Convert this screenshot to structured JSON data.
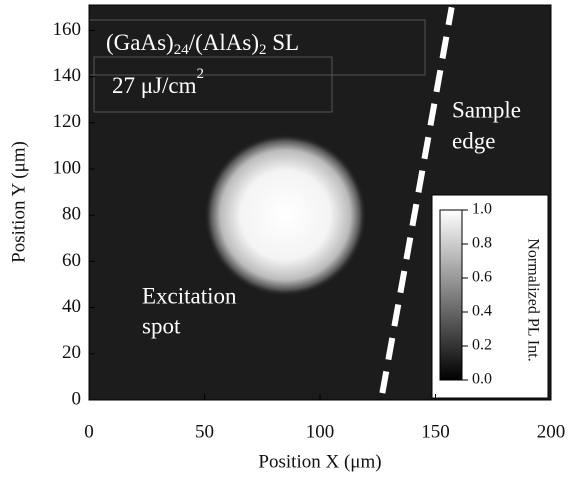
{
  "chart_data": {
    "type": "image",
    "title_parts": [
      "(GaAs)",
      "24",
      "/(AlAs)",
      "2",
      " SL"
    ],
    "fluence_parts": [
      "27 μJ/cm",
      "2"
    ],
    "annotations": [
      [
        "Sample",
        "edge"
      ],
      [
        "Excitation",
        "spot"
      ]
    ],
    "xlabel": "Position X (μm)",
    "ylabel": "Position Y (μm)",
    "xlim": [
      0,
      200
    ],
    "xticks": [
      0,
      50,
      100,
      150,
      200
    ],
    "ylim": [
      0,
      171
    ],
    "yticks": [
      0,
      20,
      40,
      60,
      80,
      100,
      120,
      140,
      160
    ],
    "spot": {
      "x": 85,
      "y": 80,
      "radius": 26
    },
    "edge": {
      "x": [
        127,
        157
      ],
      "y": [
        3,
        170
      ]
    },
    "colorbar": {
      "label": "Normalized PL Int.",
      "lim": [
        0,
        1
      ],
      "ticks": [
        {
          "value": 0,
          "label": "0.0"
        },
        {
          "value": 0.2,
          "label": "0.2"
        },
        {
          "value": 0.4,
          "label": "0.4"
        },
        {
          "value": 0.6,
          "label": "0.6"
        },
        {
          "value": 0.8,
          "label": "0.8"
        },
        {
          "value": 1,
          "label": "1.0"
        }
      ]
    }
  }
}
